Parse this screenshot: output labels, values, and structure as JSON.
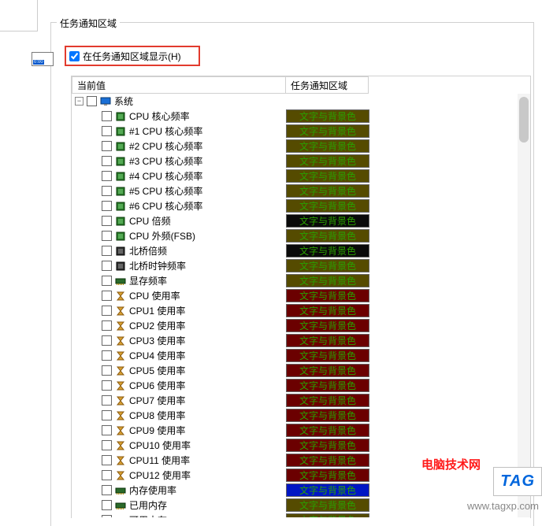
{
  "fieldset_title": "任务通知区域",
  "checkbox_label": "在任务通知区域显示(H)",
  "checkbox_checked": true,
  "columns": {
    "col1": "当前值",
    "col2": "任务通知区域"
  },
  "badge_text": "文字与背景色",
  "group": {
    "label": "系统",
    "icon": "monitor",
    "indent": 1,
    "expandable": true
  },
  "items": [
    {
      "label": "CPU 核心频率",
      "icon": "chip",
      "fg": "#2aa000",
      "bg": "#554b00"
    },
    {
      "label": "#1 CPU 核心频率",
      "icon": "chip",
      "fg": "#2aa000",
      "bg": "#554b00"
    },
    {
      "label": "#2 CPU 核心频率",
      "icon": "chip",
      "fg": "#2aa000",
      "bg": "#554b00"
    },
    {
      "label": "#3 CPU 核心频率",
      "icon": "chip",
      "fg": "#2aa000",
      "bg": "#554b00"
    },
    {
      "label": "#4 CPU 核心频率",
      "icon": "chip",
      "fg": "#2aa000",
      "bg": "#554b00"
    },
    {
      "label": "#5 CPU 核心频率",
      "icon": "chip",
      "fg": "#2aa000",
      "bg": "#554b00"
    },
    {
      "label": "#6 CPU 核心频率",
      "icon": "chip",
      "fg": "#2aa000",
      "bg": "#554b00"
    },
    {
      "label": "CPU 倍频",
      "icon": "chip",
      "fg": "#2aa000",
      "bg": "#0a0a0a"
    },
    {
      "label": "CPU 外频(FSB)",
      "icon": "chip",
      "fg": "#2aa000",
      "bg": "#554b00"
    },
    {
      "label": "北桥倍频",
      "icon": "northbridge",
      "fg": "#2aa000",
      "bg": "#0a0a0a"
    },
    {
      "label": "北桥时钟频率",
      "icon": "northbridge",
      "fg": "#2aa000",
      "bg": "#554b00"
    },
    {
      "label": "显存频率",
      "icon": "ram",
      "fg": "#2aa000",
      "bg": "#554b00"
    },
    {
      "label": "CPU 使用率",
      "icon": "hourglass",
      "fg": "#2aa000",
      "bg": "#6b0000"
    },
    {
      "label": "CPU1 使用率",
      "icon": "hourglass",
      "fg": "#2aa000",
      "bg": "#6b0000"
    },
    {
      "label": "CPU2 使用率",
      "icon": "hourglass",
      "fg": "#2aa000",
      "bg": "#6b0000"
    },
    {
      "label": "CPU3 使用率",
      "icon": "hourglass",
      "fg": "#2aa000",
      "bg": "#6b0000"
    },
    {
      "label": "CPU4 使用率",
      "icon": "hourglass",
      "fg": "#2aa000",
      "bg": "#6b0000"
    },
    {
      "label": "CPU5 使用率",
      "icon": "hourglass",
      "fg": "#2aa000",
      "bg": "#6b0000"
    },
    {
      "label": "CPU6 使用率",
      "icon": "hourglass",
      "fg": "#2aa000",
      "bg": "#6b0000"
    },
    {
      "label": "CPU7 使用率",
      "icon": "hourglass",
      "fg": "#2aa000",
      "bg": "#6b0000"
    },
    {
      "label": "CPU8 使用率",
      "icon": "hourglass",
      "fg": "#2aa000",
      "bg": "#6b0000"
    },
    {
      "label": "CPU9 使用率",
      "icon": "hourglass",
      "fg": "#2aa000",
      "bg": "#6b0000"
    },
    {
      "label": "CPU10 使用率",
      "icon": "hourglass",
      "fg": "#2aa000",
      "bg": "#6b0000"
    },
    {
      "label": "CPU11 使用率",
      "icon": "hourglass",
      "fg": "#2aa000",
      "bg": "#6b0000"
    },
    {
      "label": "CPU12 使用率",
      "icon": "hourglass",
      "fg": "#2aa000",
      "bg": "#6b0000"
    },
    {
      "label": "内存使用率",
      "icon": "ram",
      "fg": "#2aa000",
      "bg": "#0016c4"
    },
    {
      "label": "已用内存",
      "icon": "ram",
      "fg": "#2aa000",
      "bg": "#554b00"
    },
    {
      "label": "可用内存",
      "icon": "ram",
      "fg": "#2aa000",
      "bg": "#554b00"
    }
  ],
  "watermark": {
    "text": "电脑技术网",
    "tag": "TAG",
    "url": "www.tagxp.com"
  },
  "colors": {
    "highlight_border": "#e23b2e",
    "panel_border": "#d0d0d0"
  }
}
